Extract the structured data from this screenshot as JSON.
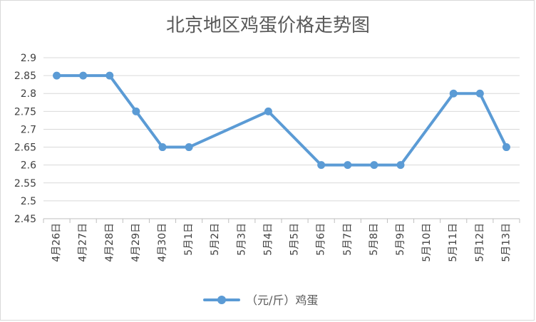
{
  "chart_data": {
    "type": "line",
    "title": "北京地区鸡蛋价格走势图",
    "xlabel": "",
    "ylabel": "",
    "categories": [
      "4月26日",
      "4月27日",
      "4月28日",
      "4月29日",
      "4月30日",
      "5月1日",
      "5月2日",
      "5月3日",
      "5月4日",
      "5月5日",
      "5月6日",
      "5月7日",
      "5月8日",
      "5月9日",
      "5月10日",
      "5月11日",
      "5月12日",
      "5月13日"
    ],
    "series": [
      {
        "name": "（元/斤）鸡蛋",
        "values": [
          2.85,
          2.85,
          2.85,
          2.75,
          2.65,
          2.65,
          null,
          null,
          2.75,
          null,
          2.6,
          2.6,
          2.6,
          2.6,
          null,
          2.8,
          2.8,
          2.65
        ],
        "color": "#5b9bd5"
      }
    ],
    "yticks": [
      "2.45",
      "2.5",
      "2.55",
      "2.6",
      "2.65",
      "2.7",
      "2.75",
      "2.8",
      "2.85",
      "2.9"
    ],
    "ylim": [
      2.45,
      2.9
    ],
    "grid": true,
    "legend": "bottom",
    "colors": {
      "grid": "#d9d9d9",
      "axis": "#bfbfbf",
      "text": "#404040",
      "title": "#595959"
    }
  }
}
